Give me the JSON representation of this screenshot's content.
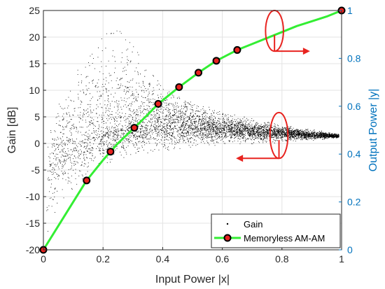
{
  "chart_data": {
    "type": "scatter",
    "xlabel": "Input Power |x|",
    "ylabel_left": "Gain [dB]",
    "ylabel_right": "Output Power |y|",
    "xlim": [
      0,
      1
    ],
    "ylim_left": [
      -20,
      25
    ],
    "ylim_right": [
      0,
      1
    ],
    "x_ticks": [
      "0",
      "0.2",
      "0.4",
      "0.6",
      "0.8",
      "1"
    ],
    "y_left_ticks": [
      "-20",
      "-15",
      "-10",
      "-5",
      "0",
      "5",
      "10",
      "15",
      "20",
      "25"
    ],
    "y_right_ticks": [
      "0",
      "0.2",
      "0.4",
      "0.6",
      "0.8",
      "1"
    ],
    "grid": true,
    "legend_position": "bottom-right",
    "colors": {
      "gain": "#000000",
      "am_am_line": "#33ee33",
      "am_am_marker_fill": "#e8231f",
      "am_am_marker_edge": "#000000",
      "annotation": "#e8231f",
      "right_axis": "#0072bd"
    },
    "series": [
      {
        "name": "Gain",
        "axis": "left",
        "kind": "scatter-cloud",
        "envelope_x": [
          0.01,
          0.03,
          0.05,
          0.08,
          0.12,
          0.16,
          0.2,
          0.25,
          0.3,
          0.35,
          0.4,
          0.45,
          0.5,
          0.55,
          0.6,
          0.65,
          0.7,
          0.75,
          0.8,
          0.85,
          0.9,
          0.95,
          0.99
        ],
        "envelope_center": [
          -6,
          -3.5,
          -2,
          -0.5,
          0.5,
          1.5,
          2.2,
          2.8,
          3.3,
          3.5,
          3.5,
          3.4,
          3.2,
          3,
          2.8,
          2.6,
          2.4,
          2.2,
          2,
          1.8,
          1.6,
          1.5,
          1.4
        ],
        "envelope_upper": [
          0,
          4,
          7,
          11,
          14,
          17,
          20,
          21,
          18,
          14,
          10,
          8.5,
          7.5,
          6.5,
          5.5,
          4.8,
          4.3,
          3.8,
          3.3,
          2.8,
          2.4,
          2.1,
          1.8
        ],
        "envelope_lower": [
          -19,
          -14,
          -11,
          -9,
          -7,
          -5,
          -3.5,
          -2.5,
          -1.8,
          -1.2,
          -0.8,
          -0.5,
          -0.2,
          0,
          0.2,
          0.4,
          0.5,
          0.6,
          0.7,
          0.8,
          0.9,
          1,
          1.1
        ]
      },
      {
        "name": "Memoryless AM-AM",
        "axis": "right",
        "kind": "line-markers",
        "x": [
          0,
          0.145,
          0.225,
          0.305,
          0.385,
          0.455,
          0.52,
          0.58,
          0.65,
          1.0
        ],
        "y": [
          0,
          0.29,
          0.41,
          0.51,
          0.61,
          0.68,
          0.74,
          0.79,
          0.835,
          1.0
        ]
      }
    ],
    "am_am_curve_x": [
      0,
      0.05,
      0.1,
      0.145,
      0.2,
      0.225,
      0.25,
      0.305,
      0.35,
      0.385,
      0.42,
      0.455,
      0.52,
      0.58,
      0.65,
      0.7,
      0.75,
      0.8,
      0.85,
      0.9,
      0.95,
      1.0
    ],
    "am_am_curve_y": [
      0,
      0.1,
      0.2,
      0.29,
      0.375,
      0.41,
      0.445,
      0.51,
      0.565,
      0.61,
      0.645,
      0.68,
      0.74,
      0.79,
      0.835,
      0.86,
      0.885,
      0.91,
      0.935,
      0.955,
      0.975,
      1.0
    ],
    "annotations": [
      {
        "kind": "ellipse",
        "cx": 0.775,
        "cy_right": 0.915,
        "rx": 0.03,
        "ry_right": 0.085,
        "arrow": "right",
        "arrow_to_x": 0.88
      },
      {
        "kind": "ellipse",
        "cx": 0.79,
        "cy_left": 1.5,
        "rx": 0.03,
        "ry_left": 4.3,
        "arrow": "left",
        "arrow_to_x": 0.66
      }
    ]
  }
}
